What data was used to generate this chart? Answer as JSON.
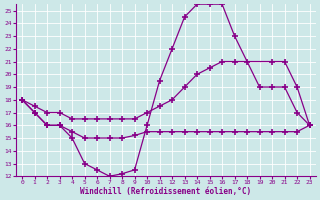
{
  "xlabel": "Windchill (Refroidissement éolien,°C)",
  "xlim": [
    -0.5,
    23.5
  ],
  "ylim": [
    12,
    25.5
  ],
  "xticks": [
    0,
    1,
    2,
    3,
    4,
    5,
    6,
    7,
    8,
    9,
    10,
    11,
    12,
    13,
    14,
    15,
    16,
    17,
    18,
    19,
    20,
    21,
    22,
    23
  ],
  "yticks": [
    12,
    13,
    14,
    15,
    16,
    17,
    18,
    19,
    20,
    21,
    22,
    23,
    24,
    25
  ],
  "bg_color": "#cde8e8",
  "line_color": "#880088",
  "line1_x": [
    0,
    1,
    2,
    3,
    4,
    5,
    6,
    7,
    8,
    9,
    10,
    11,
    12,
    13,
    14,
    15,
    16,
    17,
    18,
    19,
    20,
    21,
    22,
    23
  ],
  "line1_y": [
    18,
    17,
    16,
    16,
    15,
    13,
    12.5,
    12,
    12.2,
    12.5,
    16,
    19.5,
    22,
    24.5,
    25.5,
    25.5,
    25.5,
    23,
    21,
    19,
    19,
    19,
    17,
    16
  ],
  "line2_x": [
    0,
    1,
    2,
    3,
    4,
    5,
    6,
    7,
    8,
    9,
    10,
    11,
    12,
    13,
    14,
    15,
    16,
    17,
    18,
    19,
    20,
    21,
    22,
    23
  ],
  "line2_y": [
    18,
    17,
    16,
    16,
    15.5,
    15,
    15,
    15,
    15,
    15.2,
    15.5,
    15.5,
    15.5,
    15.5,
    15.5,
    15.5,
    15.5,
    15.5,
    15.5,
    15.5,
    15.5,
    15.5,
    15.5,
    16
  ],
  "line3_x": [
    0,
    1,
    2,
    3,
    4,
    5,
    6,
    7,
    8,
    9,
    10,
    11,
    12,
    13,
    14,
    15,
    16,
    17,
    20,
    21,
    22,
    23
  ],
  "line3_y": [
    18,
    17.5,
    17,
    17,
    16.5,
    16.5,
    16.5,
    16.5,
    16.5,
    16.5,
    17,
    17.5,
    18,
    19,
    20,
    20.5,
    21,
    21,
    21,
    21,
    19,
    16
  ]
}
